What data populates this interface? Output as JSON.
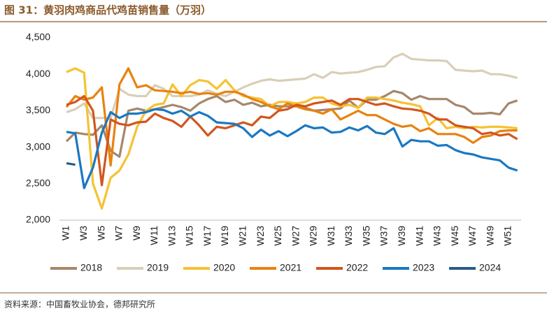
{
  "chart_data": {
    "type": "line",
    "title": "图 31：黄羽肉鸡商品代鸡苗销售量（万羽）",
    "source": "资料来源：中国畜牧业协会，德邦研究所",
    "categories": [
      "W1",
      null,
      "W3",
      null,
      "W5",
      null,
      "W7",
      null,
      "W9",
      null,
      "W11",
      null,
      "W13",
      null,
      "W15",
      null,
      "W17",
      null,
      "W19",
      null,
      "W21",
      null,
      "W23",
      null,
      "W25",
      null,
      "W27",
      null,
      "W29",
      null,
      "W31",
      null,
      "W33",
      null,
      "W35",
      null,
      "W37",
      null,
      "W39",
      null,
      "W41",
      null,
      "W43",
      null,
      "W45",
      null,
      "W47",
      null,
      "W49",
      null,
      "W51",
      null
    ],
    "ylim": [
      2000,
      4500
    ],
    "yticks": [
      {
        "value": 2000,
        "label": "2,000"
      },
      {
        "value": 2500,
        "label": "2,500"
      },
      {
        "value": 3000,
        "label": "3,000"
      },
      {
        "value": 3500,
        "label": "3,500"
      },
      {
        "value": 4000,
        "label": "4,000"
      },
      {
        "value": 4500,
        "label": "4,500"
      }
    ],
    "grid": false,
    "legend": "bottom",
    "series": [
      {
        "name": "2018",
        "color": "#a5876b",
        "values": [
          3080,
          3200,
          3180,
          3170,
          3300,
          2950,
          2870,
          3500,
          3530,
          3500,
          3520,
          3550,
          3580,
          3550,
          3500,
          3600,
          3660,
          3700,
          3620,
          3650,
          3580,
          3610,
          3560,
          3580,
          3560,
          3560,
          3560,
          3540,
          3500,
          3510,
          3520,
          3530,
          3640,
          3540,
          3650,
          3650,
          3700,
          3770,
          3740,
          3650,
          3700,
          3660,
          3660,
          3660,
          3580,
          3550,
          3460,
          3460,
          3470,
          3450,
          3600,
          3640
        ]
      },
      {
        "name": "2019",
        "color": "#d9cfb7",
        "values": [
          3480,
          3520,
          3600,
          3400,
          3400,
          3400,
          3800,
          3720,
          3700,
          3700,
          3850,
          3800,
          3700,
          3700,
          3700,
          3720,
          3780,
          3730,
          3700,
          3760,
          3820,
          3870,
          3910,
          3930,
          3910,
          3920,
          3930,
          3940,
          4000,
          3950,
          4030,
          4010,
          4020,
          4030,
          4060,
          4100,
          4110,
          4230,
          4280,
          4210,
          4200,
          4190,
          4190,
          4180,
          4060,
          4050,
          4040,
          4050,
          4000,
          4000,
          3980,
          3950
        ]
      },
      {
        "name": "2020",
        "color": "#f5c232",
        "values": [
          4030,
          4080,
          4020,
          2500,
          2160,
          2580,
          2680,
          2900,
          3280,
          3500,
          3580,
          3600,
          3860,
          3700,
          3850,
          3920,
          3900,
          3800,
          3920,
          3780,
          3700,
          3680,
          3660,
          3560,
          3620,
          3620,
          3600,
          3620,
          3680,
          3680,
          3600,
          3560,
          3580,
          3540,
          3680,
          3680,
          3660,
          3640,
          3610,
          3590,
          3560,
          3300,
          3400,
          3260,
          3280,
          3260,
          3280,
          3270,
          3280,
          3280,
          3270,
          3260
        ]
      },
      {
        "name": "2021",
        "color": "#e8820f",
        "values": [
          3550,
          3700,
          3650,
          3680,
          3820,
          2750,
          3860,
          4080,
          3820,
          3850,
          3780,
          3770,
          3760,
          3740,
          3760,
          3730,
          3740,
          3720,
          3760,
          3760,
          3720,
          3660,
          3620,
          3560,
          3520,
          3600,
          3560,
          3520,
          3500,
          3460,
          3520,
          3380,
          3440,
          3500,
          3440,
          3440,
          3380,
          3320,
          3280,
          3300,
          3220,
          3260,
          3180,
          3180,
          3180,
          3140,
          3060,
          3140,
          3160,
          3220,
          3230,
          3230
        ]
      },
      {
        "name": "2022",
        "color": "#d2561c",
        "values": [
          3580,
          3620,
          3700,
          3500,
          2480,
          3380,
          3320,
          3300,
          3340,
          3350,
          3460,
          3400,
          3360,
          3280,
          3420,
          3300,
          3160,
          3280,
          3260,
          3300,
          3340,
          3300,
          3420,
          3400,
          3500,
          3520,
          3580,
          3560,
          3600,
          3620,
          3640,
          3580,
          3660,
          3660,
          3620,
          3580,
          3600,
          3560,
          3530,
          3520,
          3500,
          3460,
          3380,
          3380,
          3300,
          3280,
          3260,
          3180,
          3200,
          3160,
          3180,
          3110
        ]
      },
      {
        "name": "2023",
        "color": "#1a78c2",
        "values": [
          3210,
          3190,
          2440,
          2720,
          3200,
          3480,
          3400,
          3460,
          3460,
          3480,
          3520,
          3510,
          3460,
          3500,
          3420,
          3480,
          3430,
          3340,
          3330,
          3320,
          3260,
          3140,
          3240,
          3160,
          3220,
          3150,
          3220,
          3300,
          3260,
          3270,
          3200,
          3210,
          3270,
          3230,
          3290,
          3200,
          3180,
          3260,
          3010,
          3100,
          3080,
          3080,
          3020,
          3030,
          2960,
          2920,
          2900,
          2860,
          2840,
          2820,
          2720,
          2680
        ]
      },
      {
        "name": "2024",
        "color": "#2b5a8a",
        "values": [
          2780,
          2760,
          null,
          null,
          null,
          null,
          null,
          null,
          null,
          null,
          null,
          null,
          null,
          null,
          null,
          null,
          null,
          null,
          null,
          null,
          null,
          null,
          null,
          null,
          null,
          null,
          null,
          null,
          null,
          null,
          null,
          null,
          null,
          null,
          null,
          null,
          null,
          null,
          null,
          null,
          null,
          null,
          null,
          null,
          null,
          null,
          null,
          null,
          null,
          null,
          null,
          null
        ]
      }
    ]
  }
}
